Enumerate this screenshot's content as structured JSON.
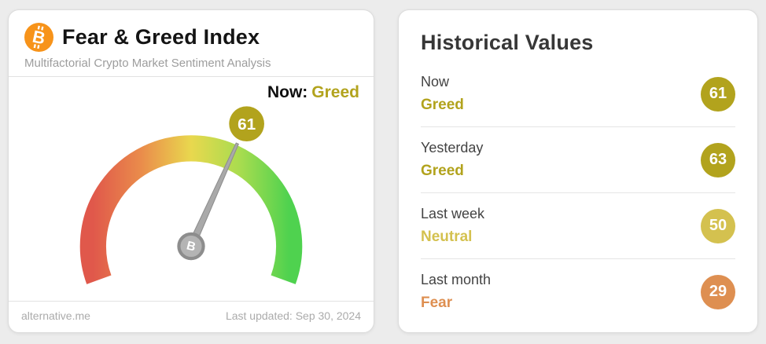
{
  "page": {
    "background_color": "#ececec"
  },
  "fg_card": {
    "title": "Fear & Greed Index",
    "subtitle": "Multifactorial Crypto Market Sentiment Analysis",
    "bitcoin_glyph": "B",
    "now_label": "Now:",
    "now_sentiment": "Greed",
    "now_color": "#b2a31d",
    "footer_site": "alternative.me",
    "footer_updated": "Last updated: Sep 30, 2024"
  },
  "historical_card": {
    "title": "Historical Values",
    "rows": [
      {
        "period": "Now",
        "sentiment": "Greed",
        "value": "61",
        "color": "#b2a31d"
      },
      {
        "period": "Yesterday",
        "sentiment": "Greed",
        "value": "63",
        "color": "#b2a31d"
      },
      {
        "period": "Last week",
        "sentiment": "Neutral",
        "value": "50",
        "color": "#d4c14f"
      },
      {
        "period": "Last month",
        "sentiment": "Fear",
        "value": "29",
        "color": "#de8f51"
      }
    ]
  },
  "chart_data": {
    "type": "gauge",
    "title": "Fear & Greed Index",
    "value": 61,
    "value_label": "Greed",
    "range": [
      0,
      100
    ],
    "arc_degrees": 220,
    "gradient_colors": [
      "#e0584b",
      "#ea8d4b",
      "#e9d84e",
      "#a8dc4f",
      "#4fd24f"
    ],
    "needle_color": "#a9a9a9",
    "historical": [
      {
        "period": "Now",
        "label": "Greed",
        "value": 61
      },
      {
        "period": "Yesterday",
        "label": "Greed",
        "value": 63
      },
      {
        "period": "Last week",
        "label": "Neutral",
        "value": 50
      },
      {
        "period": "Last month",
        "label": "Fear",
        "value": 29
      }
    ]
  }
}
